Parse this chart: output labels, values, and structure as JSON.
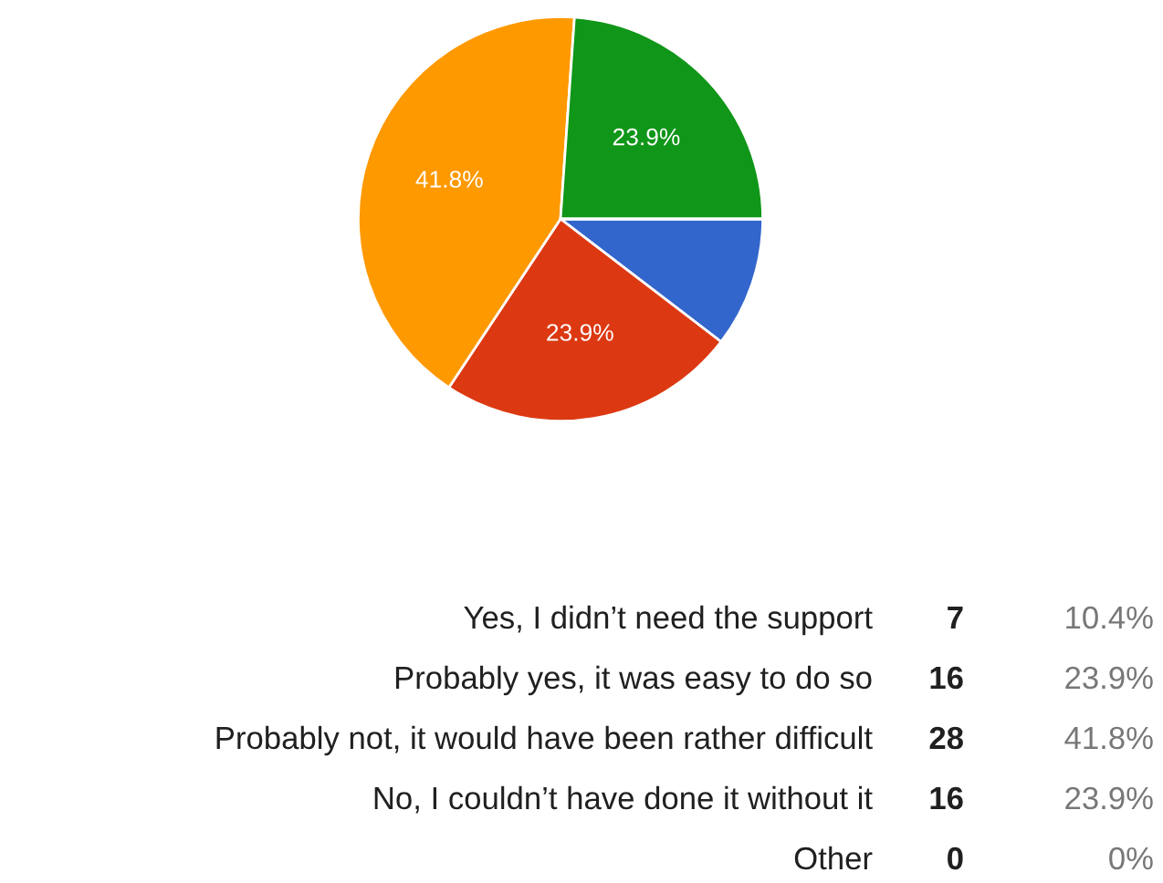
{
  "chart_data": [
    {
      "type": "pie",
      "categories": [
        null,
        null,
        null,
        null,
        null
      ],
      "values": [
        10.4,
        23.9,
        41.8,
        23.9,
        0
      ],
      "value_labels": [
        null,
        "23.9%",
        "41.8%",
        "23.9%",
        null
      ],
      "colors": [
        "#3366cc",
        "#dc3912",
        "#ff9900",
        "#109618",
        "#990099"
      ]
    },
    {
      "type": "other",
      "categories": [
        "Yes, I didn’t need the support",
        "Probably yes, it was easy to do so",
        "Probably not, it would have been rather difficult",
        "No, I couldn’t have done it without it",
        "Other"
      ],
      "values": [
        7,
        16,
        28,
        16,
        0
      ],
      "data_labels": true,
      "annotations": [
        "10.4%",
        "23.9%",
        "41.8%",
        "23.9%",
        "0%"
      ]
    }
  ]
}
